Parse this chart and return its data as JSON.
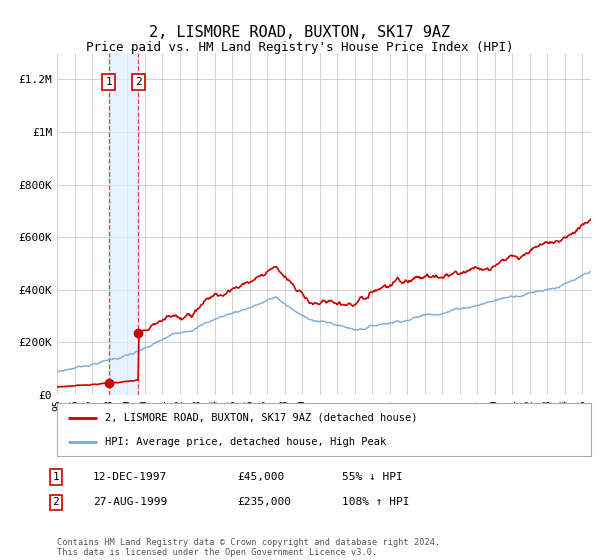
{
  "title": "2, LISMORE ROAD, BUXTON, SK17 9AZ",
  "subtitle": "Price paid vs. HM Land Registry's House Price Index (HPI)",
  "title_fontsize": 11,
  "subtitle_fontsize": 9,
  "background_color": "#ffffff",
  "grid_color": "#cccccc",
  "sale1_date_num": 1997.95,
  "sale1_price": 45000,
  "sale1_label": "1",
  "sale2_date_num": 1999.65,
  "sale2_price": 235000,
  "sale2_label": "2",
  "hpi_color": "#7aaadd",
  "price_color": "#cc0000",
  "dashed_line_color": "#dd4444",
  "annotation_box_color": "#cc0000",
  "shade_color": "#ddeeff",
  "xmin": 1995.0,
  "xmax": 2025.5,
  "ymin": 0,
  "ymax": 1300000,
  "yticks": [
    0,
    200000,
    400000,
    600000,
    800000,
    1000000,
    1200000
  ],
  "ytick_labels": [
    "£0",
    "£200K",
    "£400K",
    "£600K",
    "£800K",
    "£1M",
    "£1.2M"
  ],
  "legend_label_red": "2, LISMORE ROAD, BUXTON, SK17 9AZ (detached house)",
  "legend_label_blue": "HPI: Average price, detached house, High Peak",
  "table_row1": [
    "1",
    "12-DEC-1997",
    "£45,000",
    "55% ↓ HPI"
  ],
  "table_row2": [
    "2",
    "27-AUG-1999",
    "£235,000",
    "108% ↑ HPI"
  ],
  "footer": "Contains HM Land Registry data © Crown copyright and database right 2024.\nThis data is licensed under the Open Government Licence v3.0."
}
